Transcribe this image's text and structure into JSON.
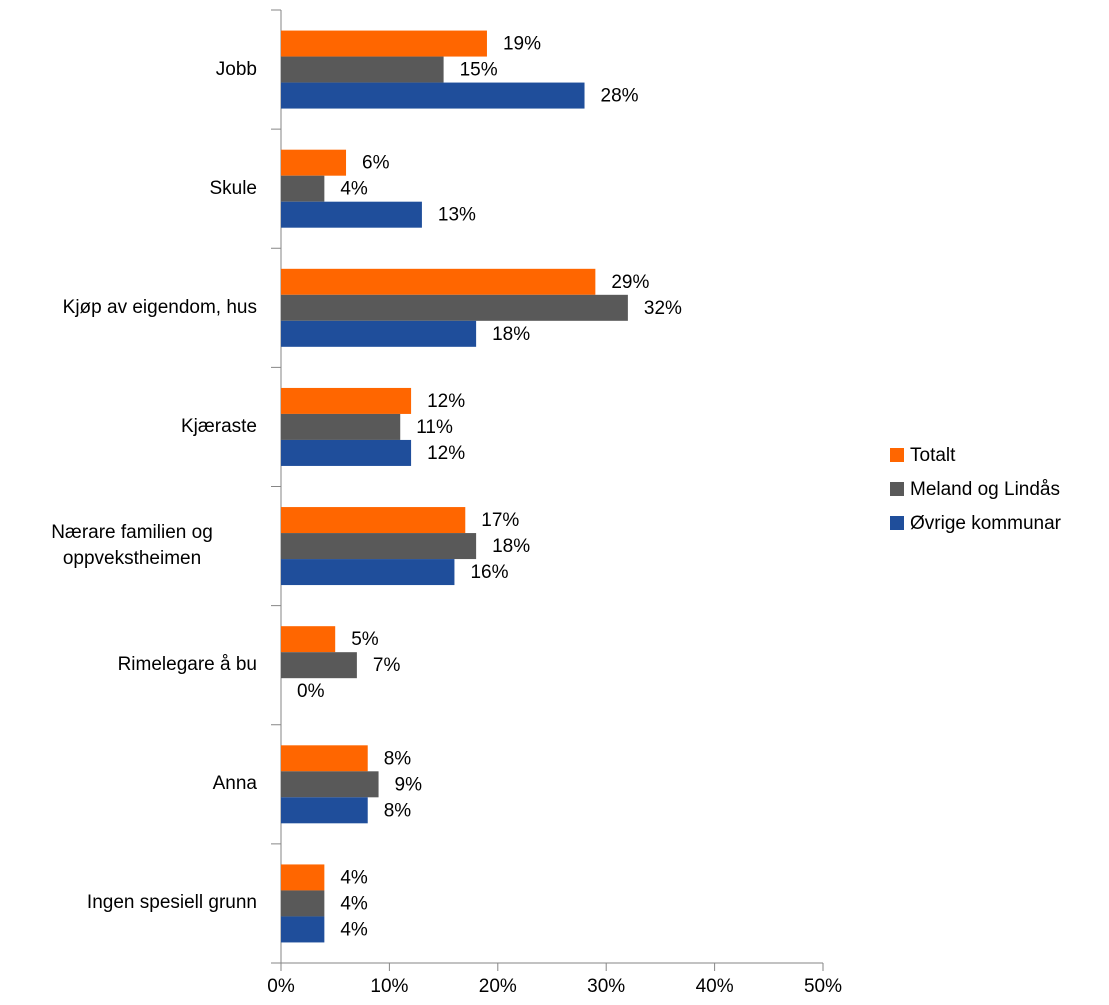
{
  "chart_data": {
    "type": "bar",
    "orientation": "horizontal",
    "categories": [
      "Jobb",
      "Skule",
      "Kjøp av eigendom, hus",
      "Kjæraste",
      "Nærare familien og oppvekstheimen",
      "Rimelegare å bu",
      "Anna",
      "Ingen spesiell grunn"
    ],
    "series": [
      {
        "name": "Totalt",
        "color": "#ff6600",
        "values": [
          19,
          6,
          29,
          12,
          17,
          5,
          8,
          4
        ],
        "value_labels": [
          "19%",
          "6%",
          "29%",
          "12%",
          "17%",
          "5%",
          "8%",
          "4%"
        ]
      },
      {
        "name": "Meland og Lindås",
        "color": "#595959",
        "values": [
          15,
          4,
          32,
          11,
          18,
          7,
          9,
          4
        ],
        "value_labels": [
          "15%",
          "4%",
          "32%",
          "11%",
          "18%",
          "7%",
          "9%",
          "4%"
        ]
      },
      {
        "name": "Øvrige kommunar",
        "color": "#1f4e9b",
        "values": [
          28,
          13,
          18,
          12,
          16,
          0,
          8,
          4
        ],
        "value_labels": [
          "28%",
          "13%",
          "18%",
          "12%",
          "16%",
          "0%",
          "8%",
          "4%"
        ]
      }
    ],
    "xlim": [
      0,
      50
    ],
    "xticks": [
      {
        "value": 0,
        "label": "0%"
      },
      {
        "value": 10,
        "label": "10%"
      },
      {
        "value": 20,
        "label": "20%"
      },
      {
        "value": 30,
        "label": "30%"
      },
      {
        "value": 40,
        "label": "40%"
      },
      {
        "value": 50,
        "label": "50%"
      }
    ],
    "legend": "right"
  }
}
